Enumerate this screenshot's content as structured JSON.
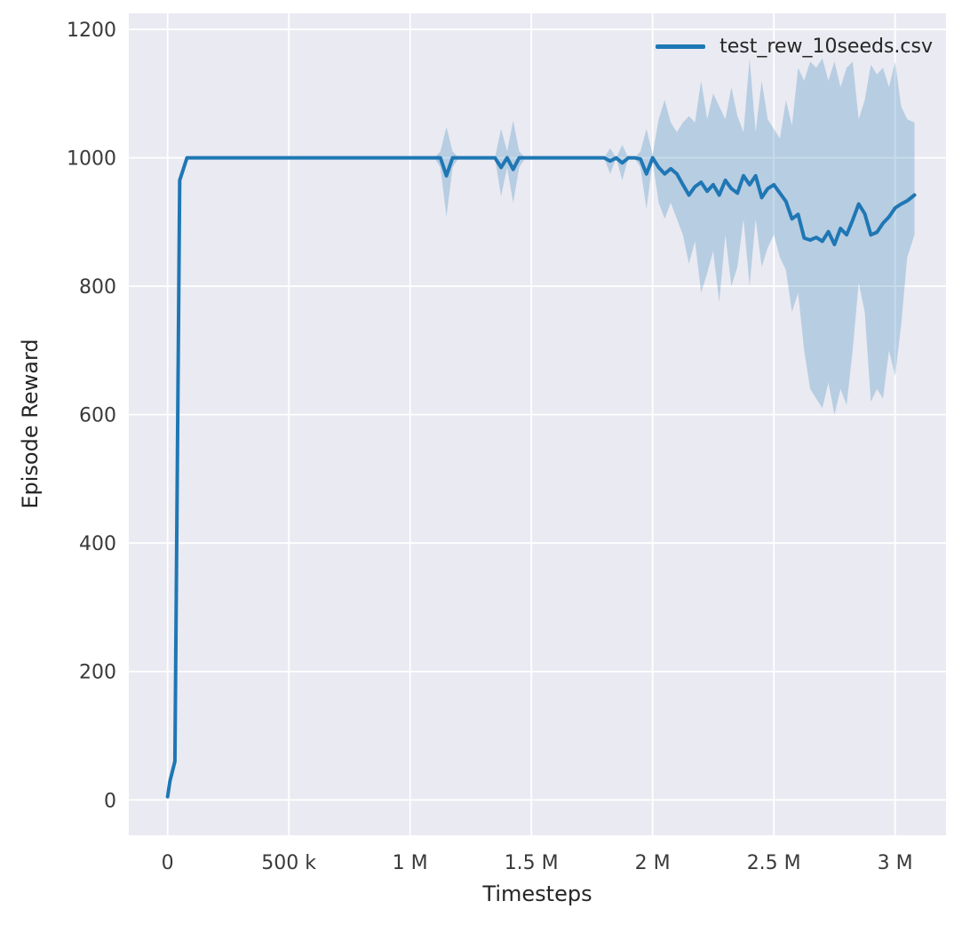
{
  "chart_data": {
    "type": "line",
    "title": "",
    "xlabel": "Timesteps",
    "ylabel": "Episode Reward",
    "legend_position": "upper right",
    "grid": true,
    "x_unit": "millions of timesteps",
    "xlim": [
      -0.16,
      3.21
    ],
    "ylim": [
      -55,
      1225
    ],
    "x_ticks": {
      "values": [
        0,
        0.5,
        1,
        1.5,
        2,
        2.5,
        3
      ],
      "labels": [
        "0",
        "500 k",
        "1 M",
        "1.5 M",
        "2 M",
        "2.5 M",
        "3 M"
      ]
    },
    "y_ticks": {
      "values": [
        0,
        200,
        400,
        600,
        800,
        1000,
        1200
      ],
      "labels": [
        "0",
        "200",
        "400",
        "600",
        "800",
        "1000",
        "1200"
      ]
    },
    "colors": {
      "line": "#1f77b4",
      "band": "#1f77b4",
      "band_opacity": 0.25,
      "plot_background": "#eaeaf2",
      "grid": "#ffffff",
      "tick_text": "#3a3a3a"
    },
    "series": [
      {
        "name": "test_rew_10seeds.csv",
        "x": [
          0,
          0.01,
          0.03,
          0.05,
          0.08,
          0.2,
          0.4,
          0.6,
          0.8,
          1.0,
          1.05,
          1.1,
          1.125,
          1.15,
          1.175,
          1.2,
          1.25,
          1.3,
          1.35,
          1.375,
          1.4,
          1.425,
          1.45,
          1.475,
          1.5,
          1.55,
          1.6,
          1.65,
          1.7,
          1.75,
          1.8,
          1.825,
          1.85,
          1.875,
          1.9,
          1.925,
          1.95,
          1.975,
          2.0,
          2.025,
          2.05,
          2.075,
          2.1,
          2.125,
          2.15,
          2.175,
          2.2,
          2.225,
          2.25,
          2.275,
          2.3,
          2.325,
          2.35,
          2.375,
          2.4,
          2.425,
          2.45,
          2.475,
          2.5,
          2.525,
          2.55,
          2.575,
          2.6,
          2.625,
          2.65,
          2.675,
          2.7,
          2.725,
          2.75,
          2.775,
          2.8,
          2.825,
          2.85,
          2.875,
          2.9,
          2.925,
          2.95,
          2.975,
          3.0,
          3.025,
          3.05,
          3.08
        ],
        "mean": [
          5,
          30,
          60,
          965,
          1000,
          1000,
          1000,
          1000,
          1000,
          1000,
          1000,
          1000,
          1000,
          972,
          1000,
          1000,
          1000,
          1000,
          1000,
          985,
          1000,
          982,
          1000,
          1000,
          1000,
          1000,
          1000,
          1000,
          1000,
          1000,
          1000,
          995,
          1000,
          992,
          1000,
          1000,
          998,
          975,
          1000,
          985,
          975,
          983,
          975,
          958,
          942,
          955,
          962,
          948,
          958,
          942,
          965,
          952,
          945,
          972,
          958,
          972,
          938,
          952,
          958,
          945,
          932,
          905,
          912,
          875,
          872,
          876,
          870,
          885,
          865,
          890,
          880,
          903,
          928,
          913,
          880,
          884,
          898,
          908,
          922,
          928,
          933,
          942
        ],
        "band_lower": [
          5,
          30,
          60,
          965,
          1000,
          1000,
          1000,
          1000,
          1000,
          1000,
          1000,
          1000,
          985,
          908,
          985,
          1000,
          1000,
          1000,
          1000,
          940,
          985,
          930,
          985,
          1000,
          1000,
          1000,
          1000,
          1000,
          1000,
          1000,
          1000,
          975,
          1000,
          965,
          1000,
          1000,
          985,
          920,
          995,
          930,
          905,
          930,
          905,
          880,
          835,
          870,
          790,
          820,
          855,
          775,
          880,
          800,
          830,
          905,
          800,
          905,
          830,
          860,
          880,
          845,
          825,
          760,
          790,
          700,
          640,
          625,
          610,
          650,
          600,
          640,
          615,
          700,
          805,
          760,
          620,
          640,
          625,
          700,
          660,
          740,
          845,
          880
        ],
        "band_upper": [
          5,
          30,
          60,
          965,
          1000,
          1000,
          1000,
          1000,
          1000,
          1000,
          1000,
          1000,
          1010,
          1048,
          1010,
          1000,
          1000,
          1000,
          1000,
          1045,
          1010,
          1058,
          1010,
          1000,
          1000,
          1000,
          1000,
          1000,
          1000,
          1000,
          1000,
          1015,
          1000,
          1020,
          1000,
          1000,
          1010,
          1045,
          1005,
          1060,
          1090,
          1055,
          1040,
          1055,
          1065,
          1055,
          1120,
          1060,
          1100,
          1080,
          1060,
          1110,
          1065,
          1040,
          1155,
          1040,
          1120,
          1060,
          1045,
          1030,
          1090,
          1050,
          1140,
          1120,
          1150,
          1140,
          1155,
          1120,
          1150,
          1110,
          1140,
          1150,
          1060,
          1090,
          1145,
          1130,
          1140,
          1110,
          1150,
          1080,
          1060,
          1055
        ]
      }
    ]
  }
}
